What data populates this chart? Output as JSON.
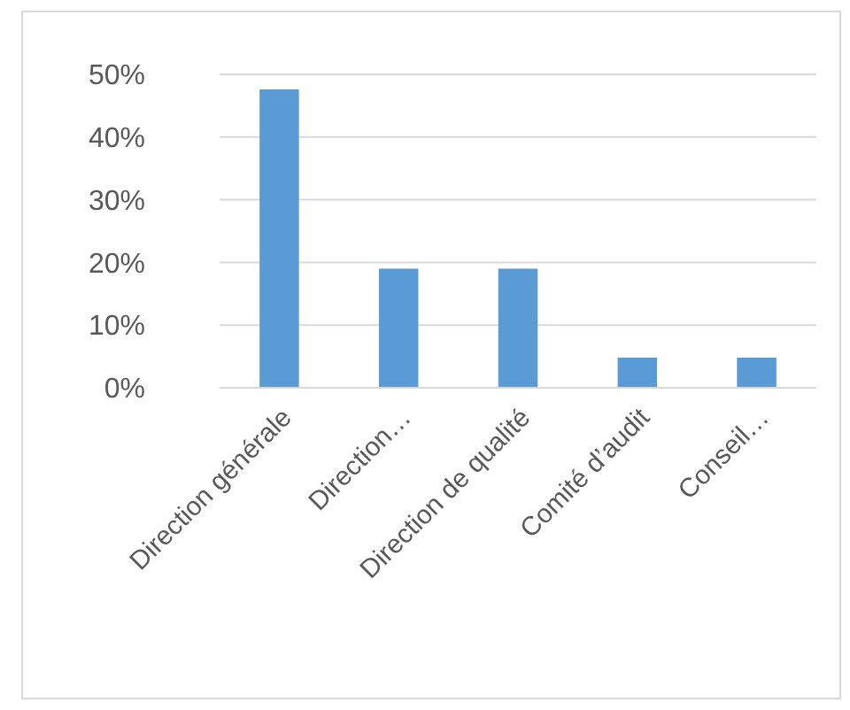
{
  "chart_data": {
    "type": "bar",
    "categories": [
      "Direction générale",
      "Direction…",
      "Direction de qualité",
      "Comité d’audit",
      "Conseil…"
    ],
    "values": [
      47.6,
      19,
      19,
      4.8,
      4.8
    ],
    "color": "#5b9bd5",
    "ylim": [
      0,
      50
    ],
    "yticks": [
      {
        "value": 0,
        "label": "0%"
      },
      {
        "value": 10,
        "label": "10%"
      },
      {
        "value": 20,
        "label": "20%"
      },
      {
        "value": 30,
        "label": "30%"
      },
      {
        "value": 40,
        "label": "40%"
      },
      {
        "value": 50,
        "label": "50%"
      }
    ],
    "grid": "y"
  }
}
